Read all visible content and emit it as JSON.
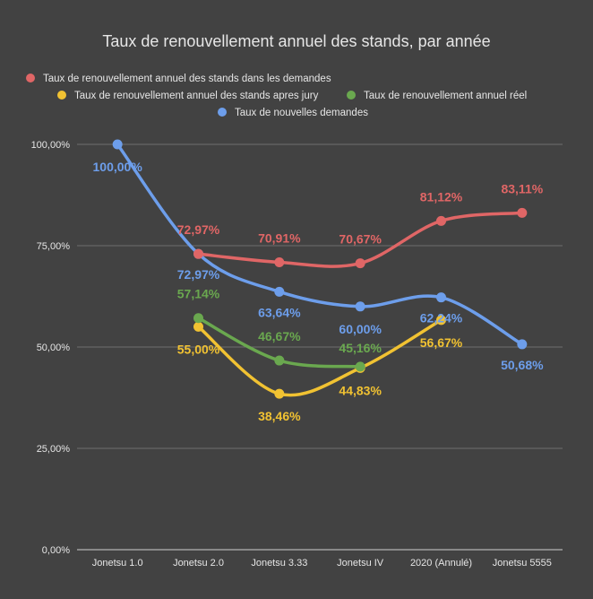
{
  "chart_data": {
    "type": "line",
    "title": "Taux de renouvellement annuel des stands, par année",
    "xlabel": "",
    "ylabel": "",
    "categories": [
      "Jonetsu 1.0",
      "Jonetsu 2.0",
      "Jonetsu 3.33",
      "Jonetsu IV",
      "2020 (Annulé)",
      "Jonetsu 5555"
    ],
    "ylim": [
      0,
      100
    ],
    "y_ticks": [
      "0,00%",
      "25,00%",
      "50,00%",
      "75,00%",
      "100,00%"
    ],
    "grid": true,
    "legend_position": "top",
    "series": [
      {
        "name": "Taux de renouvellement annuel des stands dans les demandes",
        "color": "#e06666",
        "values": [
          null,
          72.97,
          70.91,
          70.67,
          81.12,
          83.11
        ],
        "labels": [
          "",
          "72,97%",
          "70,91%",
          "70,67%",
          "81,12%",
          "83,11%"
        ]
      },
      {
        "name": "Taux de renouvellement annuel des stands apres jury",
        "color": "#f1c232",
        "values": [
          null,
          55.0,
          38.46,
          44.83,
          56.67,
          null
        ],
        "labels": [
          "",
          "55,00%",
          "38,46%",
          "44,83%",
          "56,67%",
          ""
        ]
      },
      {
        "name": "Taux de renouvellement annuel réel",
        "color": "#6aa84f",
        "values": [
          null,
          57.14,
          46.67,
          45.16,
          null,
          null
        ],
        "labels": [
          "",
          "57,14%",
          "46,67%",
          "45,16%",
          "",
          ""
        ]
      },
      {
        "name": "Taux de nouvelles demandes",
        "color": "#6d9eeb",
        "values": [
          100.0,
          72.97,
          63.64,
          60.0,
          62.24,
          50.68
        ],
        "labels": [
          "100,00%",
          "72,97%",
          "63,64%",
          "60,00%",
          "62,24%",
          "50,68%"
        ]
      }
    ]
  }
}
